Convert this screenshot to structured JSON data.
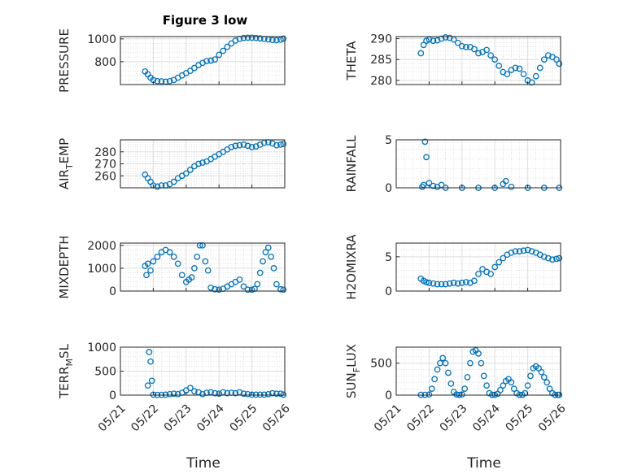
{
  "figure_title": "Figure 3 low",
  "x_axis_label": "Time",
  "x_ticks": [
    "05/21",
    "05/22",
    "05/23",
    "05/24",
    "05/25",
    "05/26"
  ],
  "marker_color": "#0072BD",
  "chart_data": [
    {
      "type": "scatter",
      "ylabel": "PRESSURE",
      "grid": true,
      "xlim": [
        "05/21",
        "05/26"
      ],
      "ylim": [
        600,
        1020
      ],
      "yticks": [
        800,
        1000
      ],
      "x": [
        "05/21 18:00",
        "05/21 20:00",
        "05/21 22:00",
        "05/22 00:00",
        "05/22 03:00",
        "05/22 06:00",
        "05/22 09:00",
        "05/22 12:00",
        "05/22 15:00",
        "05/22 18:00",
        "05/22 21:00",
        "05/23 00:00",
        "05/23 03:00",
        "05/23 06:00",
        "05/23 09:00",
        "05/23 12:00",
        "05/23 15:00",
        "05/23 18:00",
        "05/23 21:00",
        "05/24 00:00",
        "05/24 03:00",
        "05/24 06:00",
        "05/24 09:00",
        "05/24 12:00",
        "05/24 15:00",
        "05/24 18:00",
        "05/24 21:00",
        "05/25 00:00",
        "05/25 03:00",
        "05/25 06:00",
        "05/25 09:00",
        "05/25 12:00",
        "05/25 15:00",
        "05/25 18:00",
        "05/25 21:00",
        "05/25 23:00"
      ],
      "values": [
        715,
        690,
        660,
        640,
        630,
        628,
        625,
        630,
        640,
        660,
        680,
        700,
        720,
        745,
        770,
        790,
        805,
        810,
        820,
        860,
        895,
        930,
        960,
        985,
        1000,
        1008,
        1010,
        1010,
        1008,
        1004,
        1000,
        995,
        990,
        988,
        993,
        1002
      ]
    },
    {
      "type": "scatter",
      "ylabel": "THETA",
      "grid": true,
      "xlim": [
        "05/21",
        "05/26"
      ],
      "ylim": [
        279,
        290.5
      ],
      "yticks": [
        280,
        285,
        290
      ],
      "x": [
        "05/21 18:00",
        "05/21 20:00",
        "05/21 22:00",
        "05/22 00:00",
        "05/22 03:00",
        "05/22 06:00",
        "05/22 09:00",
        "05/22 12:00",
        "05/22 15:00",
        "05/22 18:00",
        "05/22 21:00",
        "05/23 00:00",
        "05/23 03:00",
        "05/23 06:00",
        "05/23 09:00",
        "05/23 12:00",
        "05/23 15:00",
        "05/23 18:00",
        "05/23 21:00",
        "05/24 00:00",
        "05/24 03:00",
        "05/24 06:00",
        "05/24 09:00",
        "05/24 12:00",
        "05/24 15:00",
        "05/24 18:00",
        "05/24 21:00",
        "05/25 00:00",
        "05/25 03:00",
        "05/25 06:00",
        "05/25 09:00",
        "05/25 12:00",
        "05/25 15:00",
        "05/25 18:00",
        "05/25 21:00",
        "05/25 23:00"
      ],
      "values": [
        286.5,
        288.5,
        289.5,
        289.8,
        289.5,
        289.6,
        290,
        290.3,
        290.2,
        289.8,
        289,
        288.2,
        288,
        288,
        287.5,
        286.5,
        286.8,
        287.3,
        286,
        285,
        283.5,
        282,
        281.5,
        282.5,
        283,
        282.8,
        281.5,
        280,
        279.5,
        281,
        283,
        285,
        286,
        285.6,
        285,
        284
      ]
    },
    {
      "type": "scatter",
      "ylabel": "AIR_TEMP",
      "grid": true,
      "xlim": [
        "05/21",
        "05/26"
      ],
      "ylim": [
        250,
        290
      ],
      "yticks": [
        260,
        270,
        280
      ],
      "x": [
        "05/21 18:00",
        "05/21 20:00",
        "05/21 22:00",
        "05/22 00:00",
        "05/22 03:00",
        "05/22 06:00",
        "05/22 09:00",
        "05/22 12:00",
        "05/22 15:00",
        "05/22 18:00",
        "05/22 21:00",
        "05/23 00:00",
        "05/23 03:00",
        "05/23 06:00",
        "05/23 09:00",
        "05/23 12:00",
        "05/23 15:00",
        "05/23 18:00",
        "05/23 21:00",
        "05/24 00:00",
        "05/24 03:00",
        "05/24 06:00",
        "05/24 09:00",
        "05/24 12:00",
        "05/24 15:00",
        "05/24 18:00",
        "05/24 21:00",
        "05/25 00:00",
        "05/25 03:00",
        "05/25 06:00",
        "05/25 09:00",
        "05/25 12:00",
        "05/25 15:00",
        "05/25 18:00",
        "05/25 21:00",
        "05/25 23:00"
      ],
      "values": [
        261,
        258,
        255,
        252,
        251,
        252,
        252,
        253,
        255,
        258,
        260,
        262,
        265,
        268,
        270,
        271,
        272,
        274,
        276,
        278,
        280,
        282,
        284,
        285,
        285.5,
        286,
        285,
        284,
        284.5,
        286,
        287.5,
        288,
        287,
        285.5,
        286,
        286.5
      ]
    },
    {
      "type": "scatter",
      "ylabel": "RAINFALL",
      "grid": true,
      "xlim": [
        "05/21",
        "05/26"
      ],
      "ylim": [
        0,
        5
      ],
      "yticks": [
        0,
        5
      ],
      "x": [
        "05/21 19:00",
        "05/21 20:00",
        "05/21 21:00",
        "05/21 22:00",
        "05/22 00:00",
        "05/22 03:00",
        "05/22 06:00",
        "05/22 09:00",
        "05/22 12:00",
        "05/23 00:00",
        "05/23 12:00",
        "05/24 00:00",
        "05/24 06:00",
        "05/24 08:00",
        "05/24 12:00",
        "05/25 00:00",
        "05/25 12:00",
        "05/25 23:00"
      ],
      "values": [
        0.1,
        0.3,
        4.8,
        3.2,
        0.5,
        0.2,
        0.1,
        0.3,
        0.0,
        0.0,
        0.0,
        0.0,
        0.4,
        0.7,
        0.1,
        0.0,
        0.0,
        0.0
      ]
    },
    {
      "type": "scatter",
      "ylabel": "MIXDEPTH",
      "grid": true,
      "xlim": [
        "05/21",
        "05/26"
      ],
      "ylim": [
        0,
        2100
      ],
      "yticks": [
        0,
        1000,
        2000
      ],
      "x": [
        "05/21 18:00",
        "05/21 19:00",
        "05/21 20:00",
        "05/21 22:00",
        "05/22 00:00",
        "05/22 03:00",
        "05/22 06:00",
        "05/22 09:00",
        "05/22 12:00",
        "05/22 15:00",
        "05/22 18:00",
        "05/22 21:00",
        "05/23 00:00",
        "05/23 02:00",
        "05/23 04:00",
        "05/23 06:00",
        "05/23 08:00",
        "05/23 10:00",
        "05/23 12:00",
        "05/23 14:00",
        "05/23 16:00",
        "05/23 18:00",
        "05/23 21:00",
        "05/24 00:00",
        "05/24 03:00",
        "05/24 06:00",
        "05/24 09:00",
        "05/24 12:00",
        "05/24 15:00",
        "05/24 18:00",
        "05/24 21:00",
        "05/25 00:00",
        "05/25 02:00",
        "05/25 04:00",
        "05/25 06:00",
        "05/25 08:00",
        "05/25 10:00",
        "05/25 12:00",
        "05/25 14:00",
        "05/25 16:00",
        "05/25 18:00",
        "05/25 21:00",
        "05/25 23:00"
      ],
      "values": [
        1100,
        700,
        1200,
        900,
        1300,
        1500,
        1700,
        1800,
        1700,
        1500,
        1200,
        700,
        400,
        500,
        600,
        1000,
        1500,
        2000,
        2000,
        1300,
        900,
        150,
        80,
        60,
        100,
        200,
        300,
        400,
        500,
        200,
        60,
        60,
        100,
        300,
        800,
        1300,
        1700,
        1900,
        1500,
        1000,
        300,
        80,
        60
      ]
    },
    {
      "type": "scatter",
      "ylabel": "H2OMIXRA",
      "grid": true,
      "xlim": [
        "05/21",
        "05/26"
      ],
      "ylim": [
        0,
        7
      ],
      "yticks": [
        0,
        5
      ],
      "x": [
        "05/21 18:00",
        "05/21 20:00",
        "05/21 22:00",
        "05/22 00:00",
        "05/22 03:00",
        "05/22 06:00",
        "05/22 09:00",
        "05/22 12:00",
        "05/22 15:00",
        "05/22 18:00",
        "05/22 21:00",
        "05/23 00:00",
        "05/23 03:00",
        "05/23 06:00",
        "05/23 09:00",
        "05/23 12:00",
        "05/23 15:00",
        "05/23 18:00",
        "05/23 21:00",
        "05/24 00:00",
        "05/24 03:00",
        "05/24 06:00",
        "05/24 09:00",
        "05/24 12:00",
        "05/24 15:00",
        "05/24 18:00",
        "05/24 21:00",
        "05/25 00:00",
        "05/25 03:00",
        "05/25 06:00",
        "05/25 09:00",
        "05/25 12:00",
        "05/25 15:00",
        "05/25 18:00",
        "05/25 21:00",
        "05/25 23:00"
      ],
      "values": [
        1.8,
        1.5,
        1.3,
        1.2,
        1.1,
        1.0,
        1.0,
        1.0,
        1.1,
        1.2,
        1.1,
        1.2,
        1.3,
        1.2,
        1.5,
        2.5,
        3.2,
        2.8,
        2.5,
        3.5,
        4.2,
        4.8,
        5.3,
        5.6,
        5.8,
        5.8,
        5.9,
        6.0,
        5.8,
        5.6,
        5.3,
        5.0,
        4.8,
        4.6,
        4.7,
        4.8
      ]
    },
    {
      "type": "scatter",
      "ylabel": "TERR_MSL",
      "grid": true,
      "xlim": [
        "05/21",
        "05/26"
      ],
      "ylim": [
        0,
        1000
      ],
      "yticks": [
        0,
        500,
        1000
      ],
      "x": [
        "05/21 20:00",
        "05/21 21:00",
        "05/21 22:00",
        "05/21 23:00",
        "05/22 00:00",
        "05/22 03:00",
        "05/22 06:00",
        "05/22 09:00",
        "05/22 12:00",
        "05/22 15:00",
        "05/22 18:00",
        "05/22 21:00",
        "05/23 00:00",
        "05/23 03:00",
        "05/23 06:00",
        "05/23 09:00",
        "05/23 12:00",
        "05/23 15:00",
        "05/23 18:00",
        "05/23 21:00",
        "05/24 00:00",
        "05/24 03:00",
        "05/24 06:00",
        "05/24 09:00",
        "05/24 12:00",
        "05/24 15:00",
        "05/24 18:00",
        "05/24 21:00",
        "05/25 00:00",
        "05/25 03:00",
        "05/25 06:00",
        "05/25 09:00",
        "05/25 12:00",
        "05/25 15:00",
        "05/25 18:00",
        "05/25 21:00",
        "05/25 23:00"
      ],
      "values": [
        200,
        900,
        700,
        300,
        10,
        5,
        5,
        10,
        20,
        30,
        20,
        50,
        100,
        150,
        80,
        60,
        20,
        50,
        60,
        40,
        30,
        60,
        40,
        50,
        40,
        60,
        30,
        20,
        10,
        10,
        10,
        10,
        20,
        40,
        30,
        30,
        10
      ]
    },
    {
      "type": "scatter",
      "ylabel": "SUN_FLUX",
      "grid": true,
      "xlim": [
        "05/21",
        "05/26"
      ],
      "ylim": [
        0,
        750
      ],
      "yticks": [
        0,
        500
      ],
      "x": [
        "05/21 18:00",
        "05/21 21:00",
        "05/22 00:00",
        "05/22 02:00",
        "05/22 04:00",
        "05/22 06:00",
        "05/22 08:00",
        "05/22 10:00",
        "05/22 12:00",
        "05/22 14:00",
        "05/22 16:00",
        "05/22 18:00",
        "05/22 20:00",
        "05/22 22:00",
        "05/23 00:00",
        "05/23 02:00",
        "05/23 04:00",
        "05/23 06:00",
        "05/23 08:00",
        "05/23 10:00",
        "05/23 12:00",
        "05/23 14:00",
        "05/23 16:00",
        "05/23 18:00",
        "05/23 20:00",
        "05/23 22:00",
        "05/24 00:00",
        "05/24 02:00",
        "05/24 04:00",
        "05/24 06:00",
        "05/24 08:00",
        "05/24 10:00",
        "05/24 12:00",
        "05/24 14:00",
        "05/24 16:00",
        "05/24 18:00",
        "05/24 20:00",
        "05/24 22:00",
        "05/25 00:00",
        "05/25 02:00",
        "05/25 04:00",
        "05/25 06:00",
        "05/25 08:00",
        "05/25 10:00",
        "05/25 12:00",
        "05/25 14:00",
        "05/25 16:00",
        "05/25 18:00",
        "05/25 20:00",
        "05/25 22:00",
        "05/25 23:00"
      ],
      "values": [
        5,
        5,
        10,
        100,
        250,
        400,
        500,
        580,
        500,
        350,
        180,
        50,
        10,
        5,
        10,
        100,
        280,
        500,
        680,
        700,
        650,
        500,
        300,
        150,
        30,
        5,
        5,
        20,
        80,
        150,
        220,
        250,
        200,
        100,
        30,
        5,
        5,
        30,
        150,
        300,
        420,
        450,
        420,
        360,
        280,
        200,
        100,
        30,
        5,
        5,
        5
      ]
    }
  ]
}
